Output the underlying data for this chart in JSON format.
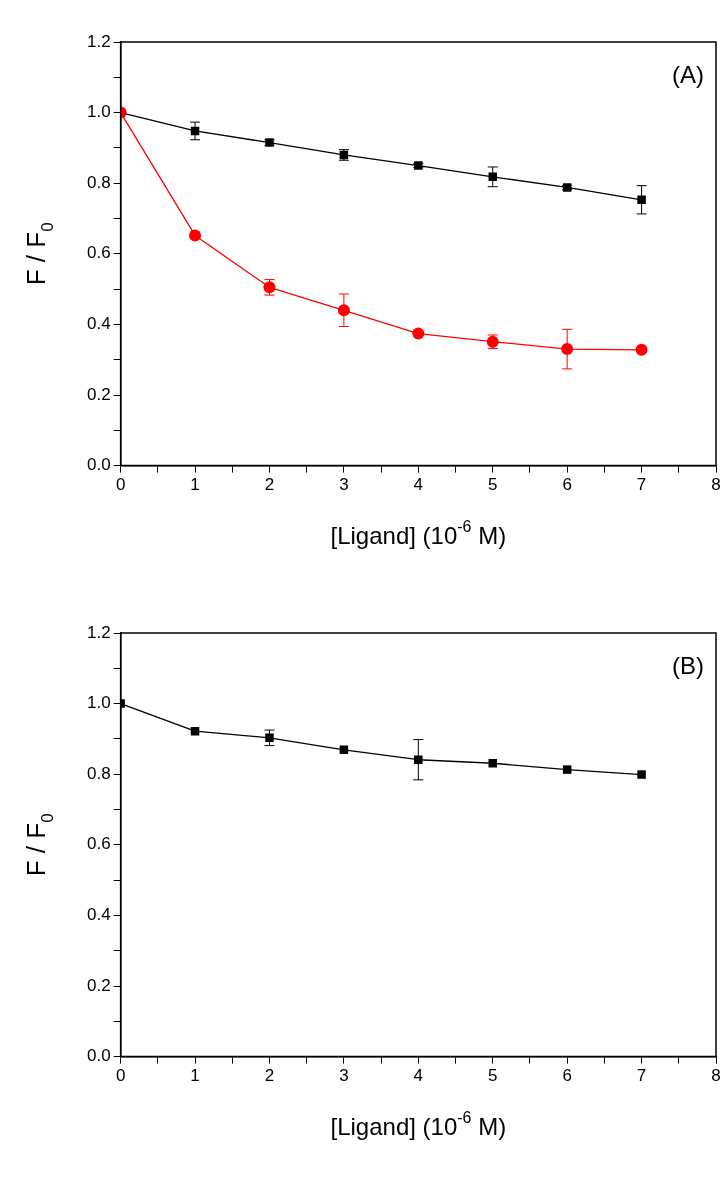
{
  "chart_data": [
    {
      "type": "line",
      "annotations": [
        "(A)"
      ],
      "xlabel": "[Ligand] (10$^{-6}$ M)",
      "ylabel": "F / F$_{0}$",
      "x": [
        0,
        1,
        2,
        3,
        4,
        5,
        6,
        7
      ],
      "xlim": [
        0,
        8
      ],
      "ylim": [
        0,
        1.2
      ],
      "xticks": [
        0,
        {
          "value": 0.5,
          "label": null
        },
        1,
        {
          "value": 1.5,
          "label": null
        },
        2,
        {
          "value": 2.5,
          "label": null
        },
        3,
        {
          "value": 3.5,
          "label": null
        },
        4,
        {
          "value": 4.5,
          "label": null
        },
        5,
        {
          "value": 5.5,
          "label": null
        },
        6,
        {
          "value": 6.5,
          "label": null
        },
        7,
        {
          "value": 7.5,
          "label": null
        },
        8
      ],
      "yticks": [
        {
          "value": 0,
          "label": "0.0"
        },
        {
          "value": 0.1,
          "label": null
        },
        0.2,
        {
          "value": 0.3,
          "label": null
        },
        0.4,
        {
          "value": 0.5,
          "label": null
        },
        0.6,
        {
          "value": 0.7,
          "label": null
        },
        0.8,
        {
          "value": 0.9,
          "label": null
        },
        {
          "value": 1,
          "label": "1.0"
        },
        {
          "value": 1.1,
          "label": null
        },
        1.2
      ],
      "series": [
        {
          "color": "#000000",
          "marker": "square",
          "values": [
            1.0,
            0.948,
            0.915,
            0.88,
            0.85,
            0.818,
            0.788,
            0.753
          ],
          "errors": [
            null,
            0.025,
            0.008,
            0.015,
            0.006,
            0.028,
            0.006,
            0.04
          ]
        },
        {
          "color": "#ff0000",
          "marker": "circle",
          "values": [
            1.0,
            0.652,
            0.505,
            0.44,
            0.374,
            0.351,
            0.33,
            0.328
          ],
          "errors": [
            null,
            null,
            0.022,
            0.046,
            null,
            0.019,
            0.056,
            null
          ]
        }
      ]
    },
    {
      "type": "line",
      "annotations": [
        "(B)"
      ],
      "xlabel": "[Ligand] (10$^{-6}$ M)",
      "ylabel": "F / F$_{0}$",
      "x": [
        0,
        1,
        2,
        3,
        4,
        5,
        6,
        7
      ],
      "xlim": [
        0,
        8
      ],
      "ylim": [
        0,
        1.2
      ],
      "xticks": [
        0,
        {
          "value": 0.5,
          "label": null
        },
        1,
        {
          "value": 1.5,
          "label": null
        },
        2,
        {
          "value": 2.5,
          "label": null
        },
        3,
        {
          "value": 3.5,
          "label": null
        },
        4,
        {
          "value": 4.5,
          "label": null
        },
        5,
        {
          "value": 5.5,
          "label": null
        },
        6,
        {
          "value": 6.5,
          "label": null
        },
        7,
        {
          "value": 7.5,
          "label": null
        },
        8
      ],
      "yticks": [
        {
          "value": 0,
          "label": "0.0"
        },
        {
          "value": 0.1,
          "label": null
        },
        0.2,
        {
          "value": 0.3,
          "label": null
        },
        0.4,
        {
          "value": 0.5,
          "label": null
        },
        0.6,
        {
          "value": 0.7,
          "label": null
        },
        0.8,
        {
          "value": 0.9,
          "label": null
        },
        {
          "value": 1,
          "label": "1.0"
        },
        {
          "value": 1.1,
          "label": null
        },
        1.2
      ],
      "series": [
        {
          "color": "#000000",
          "marker": "square",
          "values": [
            1.0,
            0.922,
            0.903,
            0.869,
            0.841,
            0.831,
            0.813,
            0.799
          ],
          "errors": [
            null,
            null,
            0.022,
            null,
            0.057,
            null,
            null,
            null
          ]
        }
      ]
    }
  ]
}
